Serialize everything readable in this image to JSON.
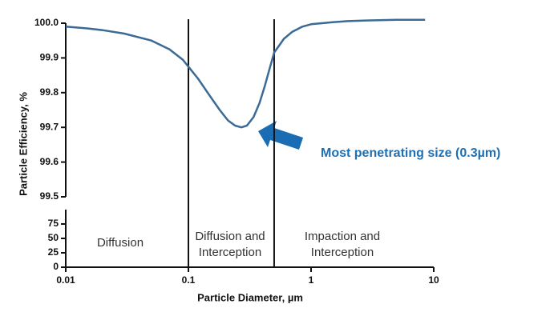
{
  "chart_data": {
    "type": "line",
    "xscale": "log",
    "ylabel": "Particle Efficiency, %",
    "xlabel": "Particle Diameter, µm",
    "xlim": [
      0.01,
      10
    ],
    "xticks": [
      0.01,
      0.1,
      1,
      10
    ],
    "ylim": [
      99.5,
      100.0
    ],
    "yticks": [
      99.5,
      99.6,
      99.7,
      99.8,
      99.9,
      {
        "value": 100,
        "label": "100.0"
      }
    ],
    "broken_ylim": [
      0,
      100
    ],
    "broken_yticks": [
      0,
      25,
      50,
      75
    ],
    "boundaries": [
      0.1,
      0.5
    ],
    "regions": [
      [
        "Diffusion"
      ],
      [
        "Diffusion and",
        "Interception"
      ],
      [
        "Impaction and",
        "Interception"
      ]
    ],
    "annotation": {
      "text": "Most penetrating size (0.3µm)",
      "x": 0.27,
      "y": 99.7,
      "color": "#1f6fb4"
    },
    "series": [
      {
        "color": "#3b6a96",
        "x": [
          0.01,
          0.015,
          0.02,
          0.03,
          0.05,
          0.07,
          0.09,
          0.1,
          0.12,
          0.15,
          0.18,
          0.21,
          0.24,
          0.27,
          0.3,
          0.34,
          0.38,
          0.42,
          0.46,
          0.5,
          0.6,
          0.7,
          0.85,
          1,
          1.5,
          2,
          3,
          5,
          8.5
        ],
        "values": [
          99.99,
          99.985,
          99.98,
          99.97,
          99.95,
          99.925,
          99.895,
          99.875,
          99.84,
          99.79,
          99.75,
          99.72,
          99.705,
          99.7,
          99.705,
          99.73,
          99.77,
          99.82,
          99.87,
          99.915,
          99.955,
          99.975,
          99.99,
          99.997,
          100.003,
          100.006,
          100.008,
          100.01,
          100.01
        ]
      }
    ]
  }
}
